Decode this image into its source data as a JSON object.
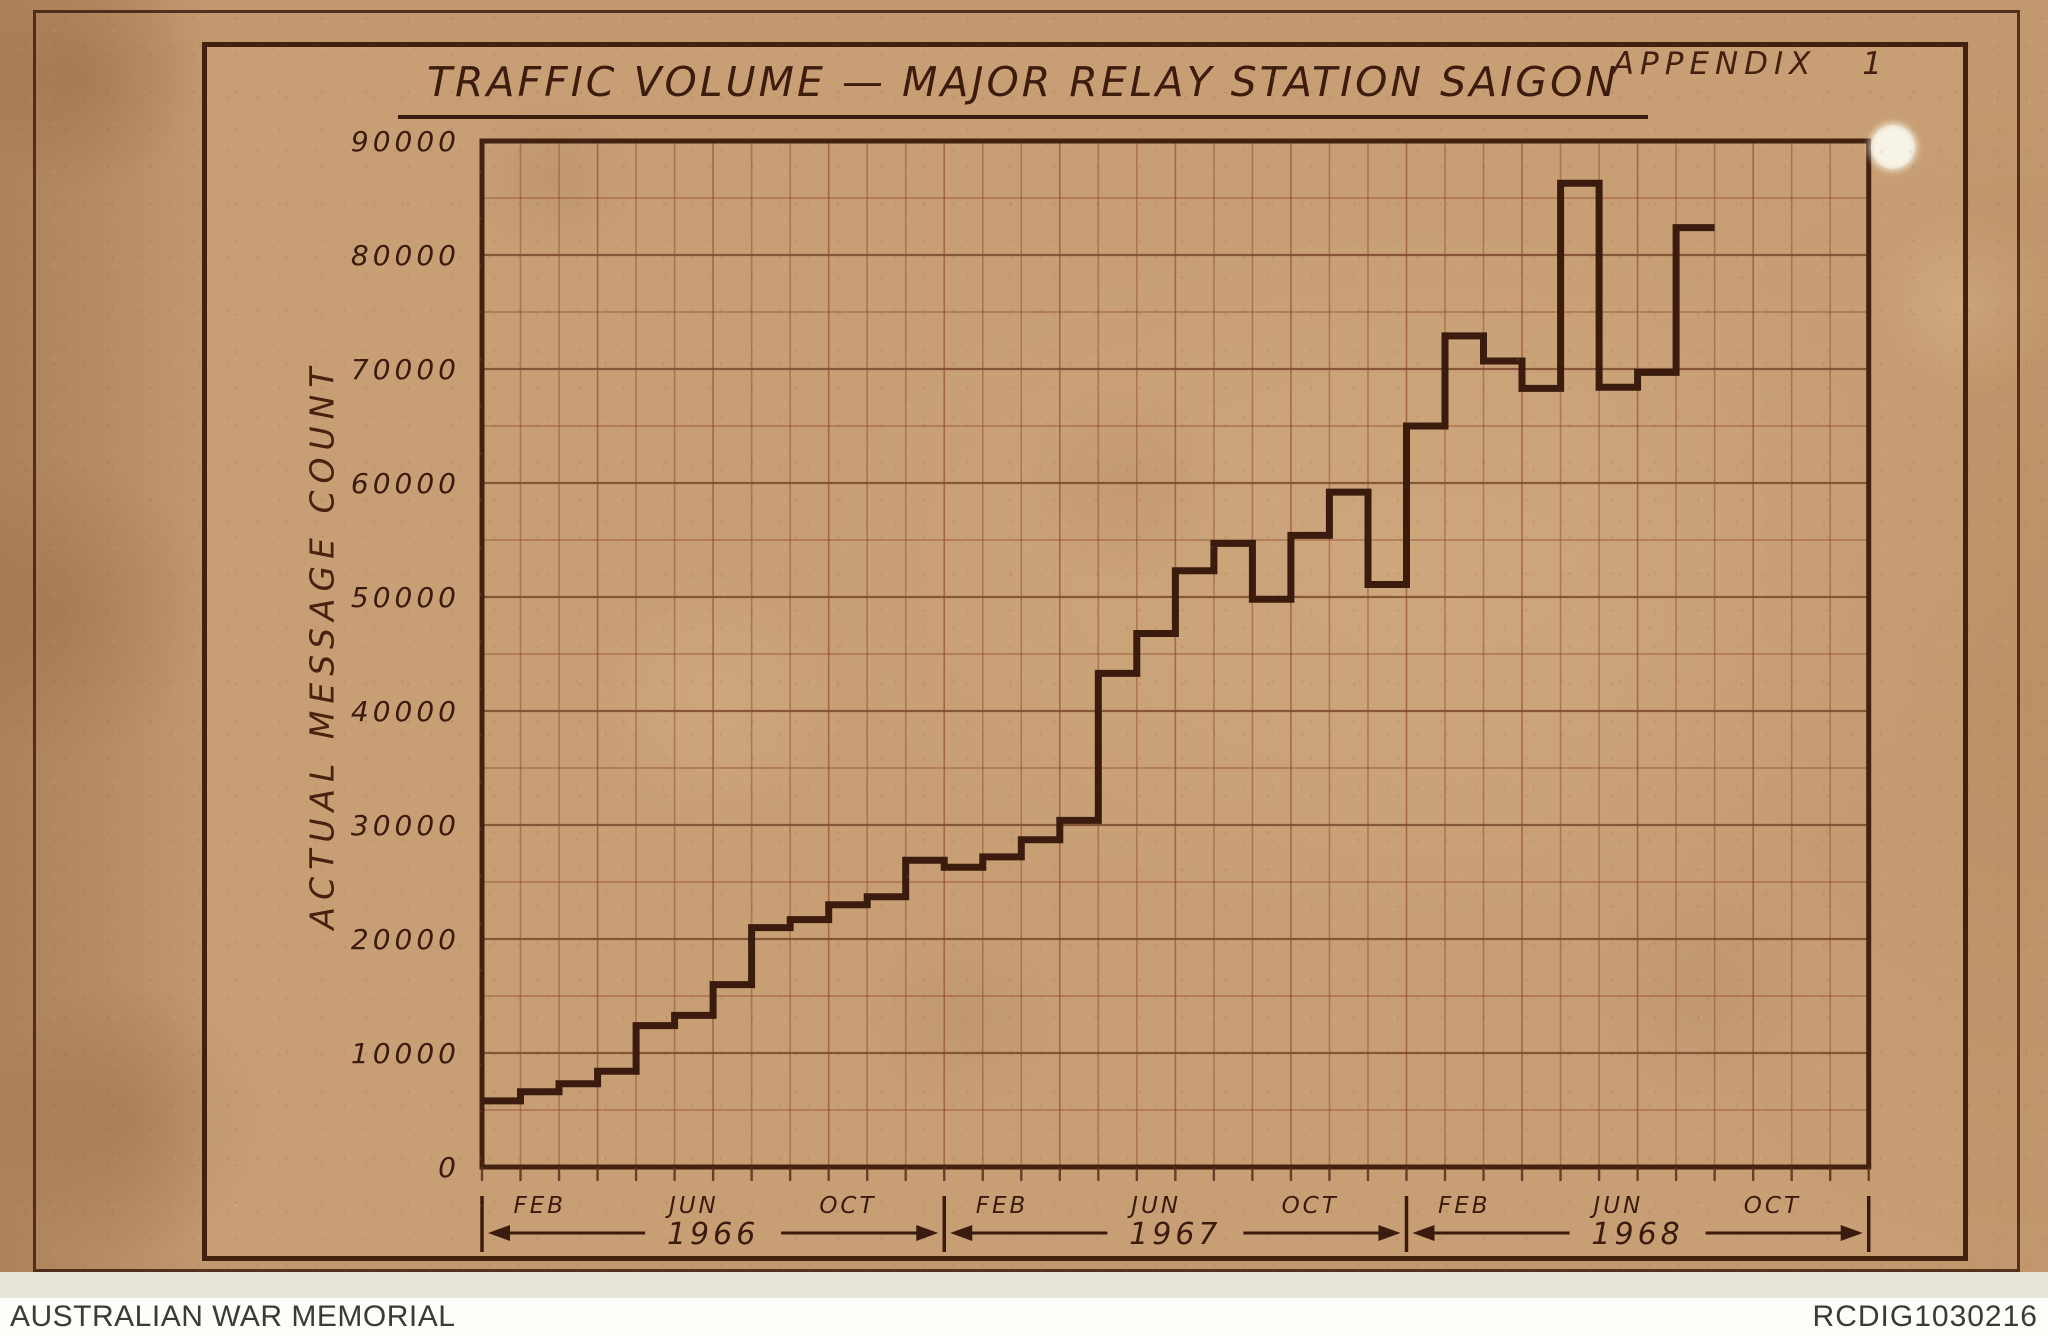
{
  "document": {
    "appendix_label": "APPENDIX 1",
    "title": "TRAFFIC VOLUME — MAJOR RELAY STATION SAIGON",
    "y_axis_label": "ACTUAL MESSAGE COUNT",
    "footer": {
      "left": "AUSTRALIAN WAR MEMORIAL",
      "right": "RCDIG1030216"
    }
  },
  "colors": {
    "paper": "#c2986e",
    "ink_dark": "#3a1b0d",
    "frame": "#43200f",
    "grid_minor": "#8d4527",
    "grid_major": "#6f3a22",
    "tick": "#55301d",
    "hole_punch": "#f7f3e6",
    "footer_bg": "#fdfdfa",
    "footer_text": "#3a3a38"
  },
  "chart_data": {
    "type": "line",
    "step": true,
    "title": "TRAFFIC VOLUME — MAJOR RELAY STATION SAIGON",
    "ylabel": "ACTUAL MESSAGE COUNT",
    "series_name": "Actual message count",
    "ylim": [
      0,
      90000
    ],
    "ytick_step": 10000,
    "grid_y_step": 5000,
    "grid": true,
    "legend_position": "none",
    "month_label_positions": [
      1,
      5,
      9
    ],
    "years": [
      {
        "label": "1966",
        "month_labels": [
          "FEB",
          "JUN",
          "OCT"
        ],
        "values": [
          5800,
          6600,
          7300,
          8400,
          12400,
          13300,
          16000,
          21000,
          21700,
          23000,
          23700,
          26900
        ]
      },
      {
        "label": "1967",
        "month_labels": [
          "FEB",
          "JUN",
          "OCT"
        ],
        "values": [
          26300,
          27200,
          28700,
          30400,
          43300,
          46800,
          52300,
          54700,
          49800,
          55400,
          59200,
          51100
        ]
      },
      {
        "label": "1968",
        "month_labels": [
          "FEB",
          "JUN",
          "OCT"
        ],
        "values": [
          65000,
          72900,
          70700,
          68300,
          86300,
          68400,
          69700,
          82400
        ]
      }
    ]
  }
}
